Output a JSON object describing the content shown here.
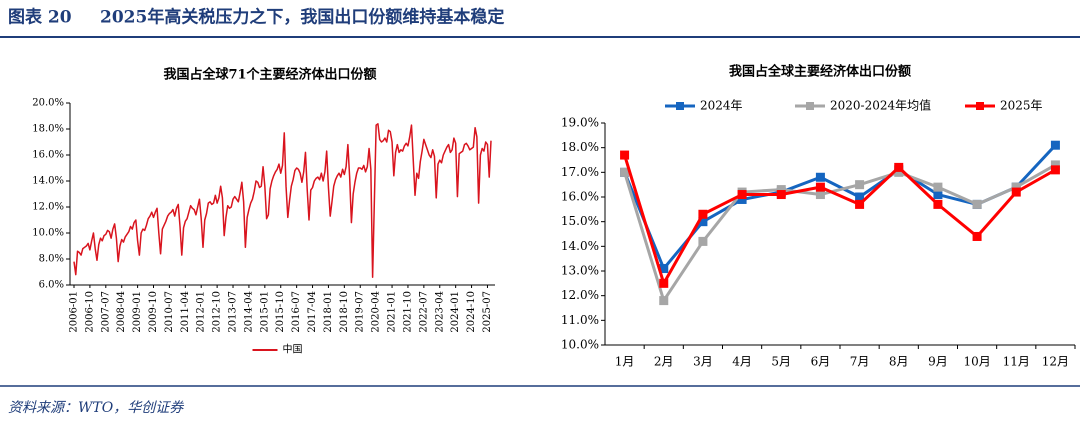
{
  "header": {
    "label": "图表 20",
    "title": "2025年高关税压力之下，我国出口份额维持基本稳定"
  },
  "source": "资料来源：WTO，华创证券",
  "chart_data": [
    {
      "type": "line",
      "title": "我国占全球71个主要经济体出口份额",
      "legend": "bottom",
      "categories": [
        "2006-01",
        null,
        null,
        null,
        null,
        null,
        null,
        null,
        null,
        "2006-10",
        null,
        null,
        null,
        null,
        null,
        null,
        null,
        null,
        "2007-07",
        null,
        null,
        null,
        null,
        null,
        null,
        null,
        null,
        "2008-04",
        null,
        null,
        null,
        null,
        null,
        null,
        null,
        null,
        "2009-01",
        null,
        null,
        null,
        null,
        null,
        null,
        null,
        null,
        "2009-10",
        null,
        null,
        null,
        null,
        null,
        null,
        null,
        null,
        "2010-07",
        null,
        null,
        null,
        null,
        null,
        null,
        null,
        null,
        "2011-04",
        null,
        null,
        null,
        null,
        null,
        null,
        null,
        null,
        "2012-01",
        null,
        null,
        null,
        null,
        null,
        null,
        null,
        null,
        "2012-10",
        null,
        null,
        null,
        null,
        null,
        null,
        null,
        null,
        "2013-07",
        null,
        null,
        null,
        null,
        null,
        null,
        null,
        null,
        "2014-04",
        null,
        null,
        null,
        null,
        null,
        null,
        null,
        null,
        "2015-01",
        null,
        null,
        null,
        null,
        null,
        null,
        null,
        null,
        "2015-10",
        null,
        null,
        null,
        null,
        null,
        null,
        null,
        null,
        "2016-07",
        null,
        null,
        null,
        null,
        null,
        null,
        null,
        null,
        "2017-04",
        null,
        null,
        null,
        null,
        null,
        null,
        null,
        null,
        "2018-01",
        null,
        null,
        null,
        null,
        null,
        null,
        null,
        null,
        "2018-10",
        null,
        null,
        null,
        null,
        null,
        null,
        null,
        null,
        "2019-07",
        null,
        null,
        null,
        null,
        null,
        null,
        null,
        null,
        "2020-04",
        null,
        null,
        null,
        null,
        null,
        null,
        null,
        null,
        "2021-01",
        null,
        null,
        null,
        null,
        null,
        null,
        null,
        null,
        "2021-10",
        null,
        null,
        null,
        null,
        null,
        null,
        null,
        null,
        "2022-07",
        null,
        null,
        null,
        null,
        null,
        null,
        null,
        null,
        "2023-04",
        null,
        null,
        null,
        null,
        null,
        null,
        null,
        null,
        "2024-01",
        null,
        null,
        null,
        null,
        null,
        null,
        null,
        null,
        "2024-10",
        null,
        null,
        null,
        null,
        null,
        null,
        null,
        null,
        "2025-07",
        null,
        null
      ],
      "series": [
        {
          "name": "中国",
          "color": "#d9141e",
          "values": [
            7.8,
            6.8,
            8.6,
            8.5,
            8.3,
            8.8,
            8.9,
            9.0,
            9.2,
            8.7,
            9.4,
            10.0,
            8.8,
            7.9,
            9.1,
            9.6,
            9.4,
            9.8,
            9.9,
            10.2,
            10.1,
            9.6,
            10.3,
            10.7,
            9.6,
            7.8,
            9.0,
            9.5,
            9.3,
            9.7,
            9.9,
            10.1,
            10.5,
            10.3,
            10.8,
            11.0,
            9.4,
            8.3,
            10.0,
            10.3,
            10.2,
            10.6,
            11.1,
            11.3,
            11.6,
            11.2,
            11.6,
            11.9,
            10.0,
            8.4,
            10.3,
            10.6,
            10.9,
            11.3,
            11.5,
            11.6,
            11.8,
            11.3,
            11.9,
            12.2,
            10.5,
            8.3,
            10.4,
            10.9,
            11.1,
            11.6,
            12.1,
            11.9,
            11.8,
            11.4,
            12.0,
            12.6,
            11.1,
            8.9,
            11.0,
            11.5,
            12.3,
            12.4,
            12.2,
            12.3,
            12.9,
            12.3,
            12.7,
            13.6,
            12.7,
            9.8,
            11.2,
            12.1,
            11.9,
            12.0,
            12.6,
            12.8,
            12.6,
            12.4,
            13.1,
            13.9,
            12.4,
            8.9,
            11.2,
            11.8,
            12.3,
            12.6,
            13.2,
            14.0,
            13.9,
            13.5,
            13.6,
            15.1,
            13.6,
            11.1,
            11.4,
            13.4,
            14.0,
            14.4,
            14.7,
            14.9,
            15.3,
            14.6,
            15.2,
            17.7,
            13.6,
            11.2,
            12.5,
            13.6,
            14.1,
            14.8,
            15.0,
            14.9,
            14.6,
            13.9,
            14.7,
            16.2,
            13.3,
            11.0,
            13.3,
            13.5,
            14.0,
            14.2,
            14.3,
            14.1,
            14.6,
            14.0,
            14.7,
            16.3,
            13.5,
            11.3,
            12.4,
            13.6,
            14.1,
            14.4,
            14.6,
            14.3,
            14.9,
            14.5,
            15.1,
            16.8,
            14.3,
            10.8,
            13.0,
            13.9,
            14.6,
            15.0,
            15.0,
            14.9,
            15.2,
            14.7,
            15.1,
            16.5,
            14.9,
            6.6,
            12.5,
            18.3,
            18.4,
            17.2,
            17.0,
            17.1,
            17.3,
            17.0,
            17.9,
            17.8,
            17.0,
            14.4,
            16.2,
            16.8,
            16.2,
            16.4,
            16.3,
            16.7,
            16.9,
            16.7,
            17.4,
            18.3,
            15.6,
            12.9,
            14.6,
            14.2,
            15.5,
            16.3,
            17.2,
            16.8,
            16.4,
            16.0,
            15.8,
            16.4,
            15.9,
            12.7,
            15.3,
            15.6,
            15.4,
            16.0,
            16.3,
            16.6,
            16.8,
            16.2,
            16.4,
            17.3,
            16.9,
            12.8,
            16.1,
            16.2,
            16.3,
            16.8,
            16.9,
            16.7,
            16.4,
            16.5,
            16.6,
            18.1,
            17.4,
            12.3,
            16.0,
            16.5,
            16.3,
            17.0,
            16.8,
            14.3,
            17.1
          ]
        }
      ],
      "ylim": [
        6,
        20
      ],
      "yticks": [
        {
          "value": 6,
          "label": "6.0%"
        },
        {
          "value": 8,
          "label": "8.0%"
        },
        {
          "value": 10,
          "label": "10.0%"
        },
        {
          "value": 12,
          "label": "12.0%"
        },
        {
          "value": 14,
          "label": "14.0%"
        },
        {
          "value": 16,
          "label": "16.0%"
        },
        {
          "value": 18,
          "label": "18.0%"
        },
        {
          "value": 20,
          "label": "20.0%"
        }
      ]
    },
    {
      "type": "line",
      "title": "我国占全球主要经济体出口份额",
      "legend": "top",
      "marker": "square",
      "categories": [
        "1月",
        "2月",
        "3月",
        "4月",
        "5月",
        "6月",
        "7月",
        "8月",
        "9月",
        "10月",
        "11月",
        "12月"
      ],
      "series": [
        {
          "name": "2024年",
          "color": "#1565c0",
          "values": [
            17.0,
            13.1,
            15.0,
            15.9,
            16.2,
            16.8,
            16.0,
            17.1,
            16.1,
            15.7,
            16.4,
            18.1
          ]
        },
        {
          "name": "2020-2024年均值",
          "color": "#a6a6a6",
          "values": [
            17.0,
            11.8,
            14.2,
            16.2,
            16.3,
            16.1,
            16.5,
            17.0,
            16.4,
            15.7,
            16.4,
            17.3
          ]
        },
        {
          "name": "2025年",
          "color": "#ff0000",
          "values": [
            17.7,
            12.5,
            15.3,
            16.1,
            16.1,
            16.4,
            15.7,
            17.2,
            15.7,
            14.4,
            16.2,
            17.1
          ]
        }
      ],
      "ylim": [
        10,
        19
      ],
      "yticks": [
        {
          "value": 10,
          "label": "10.0%"
        },
        {
          "value": 11,
          "label": "11.0%"
        },
        {
          "value": 12,
          "label": "12.0%"
        },
        {
          "value": 13,
          "label": "13.0%"
        },
        {
          "value": 14,
          "label": "14.0%"
        },
        {
          "value": 15,
          "label": "15.0%"
        },
        {
          "value": 16,
          "label": "16.0%"
        },
        {
          "value": 17,
          "label": "17.0%"
        },
        {
          "value": 18,
          "label": "18.0%"
        },
        {
          "value": 19,
          "label": "19.0%"
        }
      ]
    }
  ]
}
